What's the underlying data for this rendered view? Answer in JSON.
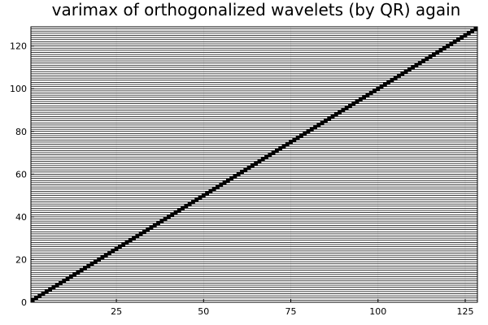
{
  "chart_data": {
    "type": "scatter",
    "title": "varimax of orthogonalized wavelets (by QR) again",
    "xlim": [
      0.5,
      128.5
    ],
    "ylim": [
      0,
      129
    ],
    "xticks": [
      25,
      50,
      75,
      100,
      125
    ],
    "yticks": [
      0,
      20,
      40,
      60,
      80,
      100,
      120
    ],
    "grid": true,
    "legend": "none",
    "series": [
      {
        "point_rule": "y equals x for integer x from 1 to 128",
        "x_start": 1,
        "x_end": 128,
        "color": "#000000",
        "hlines": "horizontal line at every integer y from 1 to 128"
      }
    ]
  }
}
